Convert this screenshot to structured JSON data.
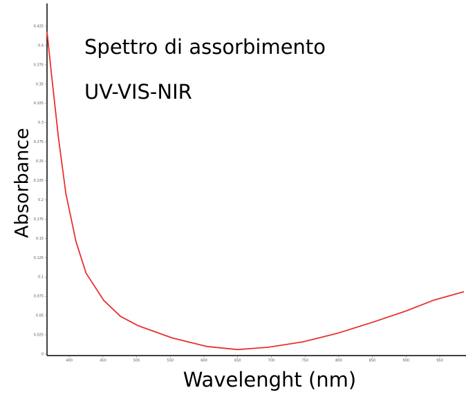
{
  "chart_data": {
    "type": "line",
    "title": "Spettro di assorbimento",
    "subtitle": "UV-VIS-NIR",
    "x_label": "Wavelenght (nm)",
    "y_label": "Absorbance",
    "x": [
      367,
      374,
      384,
      395,
      410,
      425,
      451,
      476,
      502,
      553,
      604,
      650,
      696,
      747,
      798,
      849,
      900,
      941,
      986
    ],
    "series": [
      {
        "name": "Absorbance",
        "color": "#e8302e",
        "values": [
          0.418,
          0.36,
          0.28,
          0.208,
          0.146,
          0.105,
          0.07,
          0.049,
          0.037,
          0.021,
          0.01,
          0.006,
          0.009,
          0.016,
          0.027,
          0.041,
          0.056,
          0.07,
          0.081
        ]
      }
    ],
    "xlim": [
      367,
      989
    ],
    "ylim": [
      0,
      0.45
    ],
    "xticks": [
      400,
      450,
      500,
      550,
      600,
      650,
      700,
      750,
      800,
      850,
      900,
      950
    ],
    "yticks": [
      0,
      0.025,
      0.05,
      0.075,
      0.1,
      0.125,
      0.15,
      0.175,
      0.2,
      0.225,
      0.25,
      0.275,
      0.3,
      0.325,
      0.35,
      0.375,
      0.4,
      0.425
    ],
    "grid": false
  }
}
